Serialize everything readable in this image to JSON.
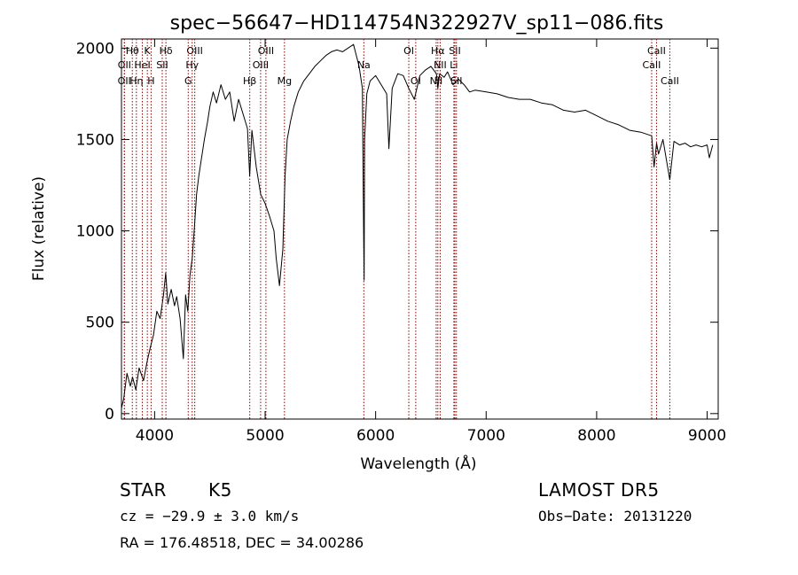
{
  "chart_data": {
    "type": "line",
    "title": "spec−56647−HD114754N322927V_sp11−086.fits",
    "xlabel": "Wavelength (Å)",
    "ylabel": "Flux (relative)",
    "xlim": [
      3700,
      9100
    ],
    "ylim": [
      -30,
      2050
    ],
    "xticks": [
      4000,
      5000,
      6000,
      7000,
      8000,
      9000
    ],
    "yticks": [
      0,
      500,
      1000,
      1500,
      2000
    ],
    "grid": false,
    "legend": "none",
    "line_color": "#000000",
    "marker_color": "#8b0000",
    "series": [
      {
        "x": [
          3700,
          3720,
          3750,
          3780,
          3800,
          3830,
          3860,
          3900,
          3930,
          3960,
          3990,
          4020,
          4050,
          4080,
          4100,
          4120,
          4150,
          4180,
          4200,
          4230,
          4260,
          4280,
          4300,
          4320,
          4340,
          4360,
          4380,
          4400,
          4420,
          4450,
          4480,
          4500,
          4530,
          4560,
          4600,
          4640,
          4680,
          4720,
          4760,
          4800,
          4840,
          4860,
          4880,
          4920,
          4960,
          5000,
          5040,
          5080,
          5100,
          5130,
          5160,
          5180,
          5200,
          5230,
          5260,
          5300,
          5350,
          5400,
          5450,
          5500,
          5550,
          5600,
          5650,
          5700,
          5750,
          5800,
          5850,
          5880,
          5890,
          5896,
          5900,
          5920,
          5950,
          6000,
          6050,
          6100,
          6120,
          6150,
          6200,
          6250,
          6300,
          6350,
          6400,
          6450,
          6500,
          6550,
          6563,
          6580,
          6620,
          6650,
          6700,
          6750,
          6800,
          6850,
          6900,
          7000,
          7100,
          7200,
          7300,
          7400,
          7500,
          7600,
          7700,
          7800,
          7900,
          8000,
          8100,
          8200,
          8300,
          8400,
          8498,
          8520,
          8542,
          8560,
          8600,
          8662,
          8700,
          8750,
          8800,
          8850,
          8900,
          8950,
          9000,
          9020,
          9050
        ],
        "y": [
          30,
          80,
          220,
          150,
          200,
          130,
          250,
          180,
          280,
          360,
          430,
          560,
          520,
          650,
          770,
          600,
          680,
          590,
          640,
          520,
          300,
          650,
          560,
          760,
          850,
          1020,
          1200,
          1300,
          1380,
          1500,
          1600,
          1680,
          1760,
          1700,
          1800,
          1720,
          1760,
          1600,
          1720,
          1640,
          1560,
          1300,
          1550,
          1350,
          1200,
          1150,
          1080,
          1000,
          850,
          700,
          900,
          1300,
          1500,
          1600,
          1680,
          1760,
          1820,
          1860,
          1900,
          1930,
          1960,
          1980,
          1990,
          1980,
          2000,
          2020,
          1900,
          1780,
          1100,
          730,
          1500,
          1750,
          1820,
          1850,
          1800,
          1750,
          1450,
          1780,
          1860,
          1850,
          1780,
          1720,
          1850,
          1880,
          1900,
          1860,
          1780,
          1860,
          1840,
          1870,
          1800,
          1830,
          1800,
          1760,
          1770,
          1760,
          1750,
          1730,
          1720,
          1720,
          1700,
          1690,
          1660,
          1650,
          1660,
          1630,
          1600,
          1580,
          1550,
          1540,
          1520,
          1350,
          1480,
          1420,
          1500,
          1280,
          1490,
          1470,
          1480,
          1460,
          1470,
          1460,
          1470,
          1400,
          1470
        ]
      }
    ],
    "line_markers": [
      {
        "label": "Hθ",
        "x": 3798,
        "row": 0
      },
      {
        "label": "K",
        "x": 3934,
        "row": 0
      },
      {
        "label": "Hδ",
        "x": 4102,
        "row": 0
      },
      {
        "label": "OIII",
        "x": 4363,
        "row": 0
      },
      {
        "label": "OIII",
        "x": 5007,
        "row": 0
      },
      {
        "label": "OI",
        "x": 6300,
        "row": 0
      },
      {
        "label": "Hα",
        "x": 6563,
        "row": 0
      },
      {
        "label": "SII",
        "x": 6717,
        "row": 0
      },
      {
        "label": "CaII",
        "x": 8542,
        "row": 0
      },
      {
        "label": "OII",
        "x": 3727,
        "row": 1
      },
      {
        "label": "HeI",
        "x": 3889,
        "row": 1
      },
      {
        "label": "SII",
        "x": 4069,
        "row": 1
      },
      {
        "label": "Hγ",
        "x": 4340,
        "row": 1
      },
      {
        "label": "OIII",
        "x": 4959,
        "row": 1
      },
      {
        "label": "NII",
        "x": 6584,
        "row": 1
      },
      {
        "label": "Li",
        "x": 6708,
        "row": 1
      },
      {
        "label": "CaII",
        "x": 8498,
        "row": 1
      },
      {
        "label": "OII",
        "x": 3726,
        "row": 2
      },
      {
        "label": "Hη",
        "x": 3835,
        "row": 2
      },
      {
        "label": "H",
        "x": 3968,
        "row": 2
      },
      {
        "label": "G",
        "x": 4304,
        "row": 2
      },
      {
        "label": "Hβ",
        "x": 4861,
        "row": 2
      },
      {
        "label": "Mg",
        "x": 5175,
        "row": 2
      },
      {
        "label": "Na",
        "x": 5893,
        "row": 1
      },
      {
        "label": "OI",
        "x": 6363,
        "row": 2
      },
      {
        "label": "NII",
        "x": 6548,
        "row": 2
      },
      {
        "label": "SII",
        "x": 6731,
        "row": 2
      },
      {
        "label": "CaII",
        "x": 8662,
        "row": 2
      }
    ]
  },
  "footer": {
    "object_type": "STAR",
    "subclass": "K5",
    "survey": "LAMOST  DR5",
    "redshift_line": "cz = −29.9 ± 3.0 km/s",
    "obs_date": "Obs−Date: 20131220",
    "coords": "RA = 176.48518, DEC =  34.00286"
  }
}
